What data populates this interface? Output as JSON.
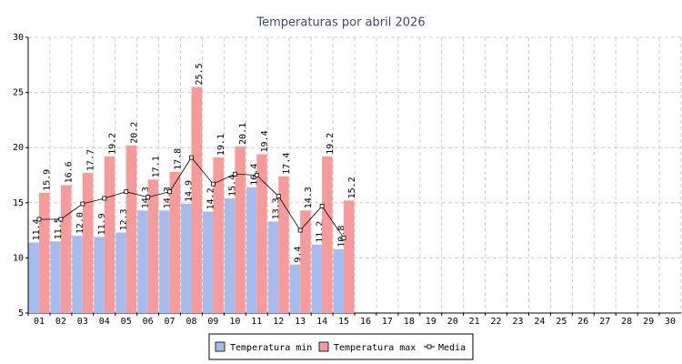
{
  "chart_data": {
    "type": "bar",
    "title": "Temperaturas por abril 2026",
    "categories": [
      "01",
      "02",
      "03",
      "04",
      "05",
      "06",
      "07",
      "08",
      "09",
      "10",
      "11",
      "12",
      "13",
      "14",
      "15",
      "16",
      "17",
      "18",
      "19",
      "20",
      "21",
      "22",
      "23",
      "24",
      "25",
      "26",
      "27",
      "28",
      "29",
      "30"
    ],
    "series": [
      {
        "name": "Temperatura min",
        "color": "#a4bdee",
        "values": [
          11.4,
          11.5,
          12.0,
          11.9,
          12.3,
          14.3,
          14.3,
          14.9,
          14.2,
          15.4,
          16.4,
          13.3,
          9.4,
          11.2,
          10.8,
          null,
          null,
          null,
          null,
          null,
          null,
          null,
          null,
          null,
          null,
          null,
          null,
          null,
          null,
          null
        ],
        "value_labels": [
          "11.4",
          "11.5",
          "12.0",
          "11.9",
          "12.3",
          "14.3",
          "14.3",
          "14.9",
          "14.2",
          "15.4",
          "16.4",
          "13.3",
          "9.4",
          "11.2",
          "10.8",
          null,
          null,
          null,
          null,
          null,
          null,
          null,
          null,
          null,
          null,
          null,
          null,
          null,
          null,
          null
        ]
      },
      {
        "name": "Temperatura max",
        "color": "#f79a9a",
        "values": [
          15.9,
          16.6,
          17.7,
          19.2,
          20.2,
          17.1,
          17.8,
          25.5,
          19.1,
          20.1,
          19.4,
          17.4,
          14.3,
          19.2,
          15.2,
          null,
          null,
          null,
          null,
          null,
          null,
          null,
          null,
          null,
          null,
          null,
          null,
          null,
          null,
          null
        ],
        "value_labels": [
          "15.9",
          "16.6",
          "17.7",
          "19.2",
          "20.2",
          "17.1",
          "17.8",
          "25.5",
          "19.1",
          "20.1",
          "19.4",
          "17.4",
          "14.3",
          "19.2",
          "15.2",
          null,
          null,
          null,
          null,
          null,
          null,
          null,
          null,
          null,
          null,
          null,
          null,
          null,
          null,
          null
        ]
      },
      {
        "name": "Media",
        "type": "line",
        "color": "#000000",
        "values": [
          13.5,
          13.5,
          14.9,
          15.4,
          16.0,
          15.5,
          16.0,
          19.1,
          16.7,
          17.6,
          17.5,
          15.6,
          12.5,
          14.7,
          11.8,
          null,
          null,
          null,
          null,
          null,
          null,
          null,
          null,
          null,
          null,
          null,
          null,
          null,
          null,
          null
        ]
      }
    ],
    "ylim": [
      5,
      30
    ],
    "yticks": [
      5,
      10,
      15,
      20,
      25,
      30
    ],
    "grid": true,
    "legend": "bottom"
  }
}
